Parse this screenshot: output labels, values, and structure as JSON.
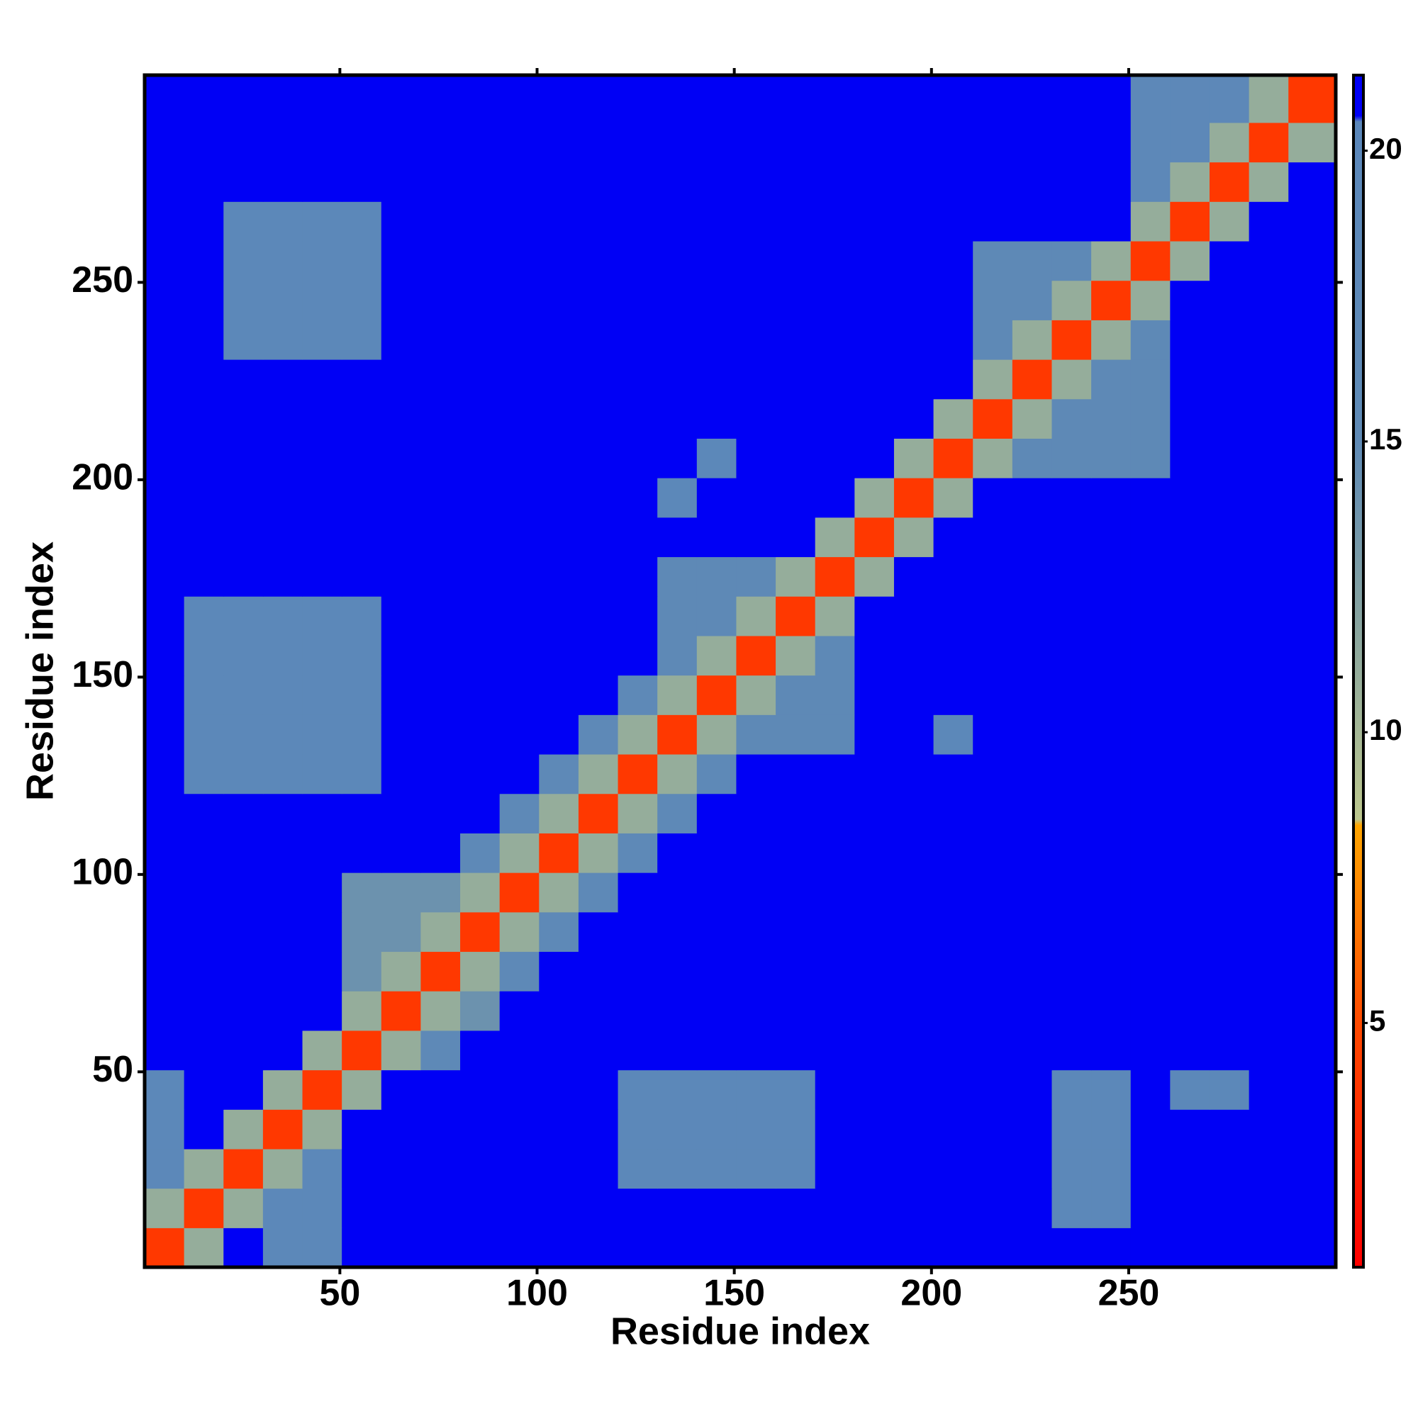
{
  "chart_data": {
    "type": "heatmap",
    "xlabel": "Residue index",
    "ylabel": "Residue index",
    "xlim": [
      0.5,
      302.5
    ],
    "ylim": [
      0.5,
      302.5
    ],
    "xticks": [
      50,
      100,
      150,
      200,
      250
    ],
    "yticks": [
      50,
      100,
      150,
      200,
      250
    ],
    "xbins": [
      0.5,
      10.5,
      20.5,
      30.5,
      40.5,
      50.5,
      60.5,
      70.5,
      80.5,
      90.5,
      100.5,
      110.5,
      120.5,
      130.5,
      140.5,
      150.5,
      160.5,
      170.5,
      180.5,
      190.5,
      200.5,
      210.5,
      220.5,
      230.5,
      240.5,
      250.5,
      260.5,
      270.5,
      280.5,
      290.5,
      302.5
    ],
    "ybins": [
      0.5,
      10.5,
      20.5,
      30.5,
      40.5,
      50.5,
      60.5,
      70.5,
      80.5,
      90.5,
      100.5,
      110.5,
      120.5,
      130.5,
      140.5,
      150.5,
      160.5,
      170.5,
      180.5,
      190.5,
      200.5,
      210.5,
      220.5,
      230.5,
      240.5,
      250.5,
      260.5,
      270.5,
      280.5,
      290.5,
      302.5
    ],
    "zlim": [
      0.8,
      21.3
    ],
    "zticks": [
      5,
      10,
      15,
      20
    ],
    "colorscale": [
      [
        0.8,
        "#ff0000"
      ],
      [
        5,
        "#ff4a00"
      ],
      [
        8.4,
        "#ffa500"
      ],
      [
        8.5,
        "#bcc78e"
      ],
      [
        12,
        "#86a3a0"
      ],
      [
        15,
        "#5f8ab5"
      ],
      [
        20.5,
        "#5b87ba"
      ],
      [
        20.6,
        "#0000f5"
      ],
      [
        21.3,
        "#0000f5"
      ]
    ],
    "z": [
      [
        4,
        11,
        21,
        19,
        19,
        21,
        21,
        21,
        21,
        21,
        21,
        21,
        21,
        21,
        21,
        21,
        21,
        21,
        21,
        21,
        21,
        21,
        21,
        21,
        21,
        21,
        21,
        21,
        21,
        21
      ],
      [
        11,
        4,
        11,
        19,
        19,
        21,
        21,
        21,
        21,
        21,
        21,
        21,
        21,
        21,
        21,
        21,
        21,
        21,
        21,
        21,
        21,
        21,
        21,
        19,
        19,
        21,
        21,
        21,
        21,
        21
      ],
      [
        19,
        11,
        4,
        11,
        19,
        21,
        21,
        21,
        21,
        21,
        21,
        21,
        19,
        19,
        19,
        19,
        19,
        21,
        21,
        21,
        21,
        21,
        21,
        19,
        19,
        21,
        21,
        21,
        21,
        21
      ],
      [
        19,
        21,
        11,
        4,
        11,
        21,
        21,
        21,
        21,
        21,
        21,
        21,
        19,
        19,
        19,
        19,
        19,
        21,
        21,
        21,
        21,
        21,
        21,
        19,
        19,
        21,
        21,
        21,
        21,
        21
      ],
      [
        19,
        21,
        21,
        11,
        4,
        11,
        21,
        21,
        21,
        21,
        21,
        21,
        19,
        19,
        19,
        19,
        19,
        21,
        21,
        21,
        21,
        21,
        21,
        19,
        19,
        21,
        19,
        19,
        21,
        21
      ],
      [
        21,
        21,
        21,
        21,
        11,
        4,
        11,
        17,
        21,
        21,
        21,
        21,
        21,
        21,
        21,
        21,
        21,
        21,
        21,
        21,
        21,
        21,
        21,
        21,
        21,
        21,
        21,
        21,
        21,
        21
      ],
      [
        21,
        21,
        21,
        21,
        21,
        11,
        4,
        11,
        14,
        21,
        21,
        21,
        21,
        21,
        21,
        21,
        21,
        21,
        21,
        21,
        21,
        21,
        21,
        21,
        21,
        21,
        21,
        21,
        21,
        21
      ],
      [
        21,
        21,
        21,
        21,
        21,
        14,
        11,
        4,
        11,
        17,
        21,
        21,
        21,
        21,
        21,
        21,
        21,
        21,
        21,
        21,
        21,
        21,
        21,
        21,
        21,
        21,
        21,
        21,
        21,
        21
      ],
      [
        21,
        21,
        21,
        21,
        21,
        14,
        14,
        11,
        4,
        11,
        17,
        21,
        21,
        21,
        21,
        21,
        21,
        21,
        21,
        21,
        21,
        21,
        21,
        21,
        21,
        21,
        21,
        21,
        21,
        21
      ],
      [
        21,
        21,
        21,
        21,
        21,
        14,
        14,
        14,
        11,
        4,
        11,
        17,
        21,
        21,
        21,
        21,
        21,
        21,
        21,
        21,
        21,
        21,
        21,
        21,
        21,
        21,
        21,
        21,
        21,
        21
      ],
      [
        21,
        21,
        21,
        21,
        21,
        21,
        21,
        21,
        17,
        11,
        4,
        11,
        17,
        21,
        21,
        21,
        21,
        21,
        21,
        21,
        21,
        21,
        21,
        21,
        21,
        21,
        21,
        21,
        21,
        21
      ],
      [
        21,
        21,
        21,
        21,
        21,
        21,
        21,
        21,
        21,
        17,
        11,
        4,
        11,
        17,
        21,
        21,
        21,
        21,
        21,
        21,
        21,
        21,
        21,
        21,
        21,
        21,
        21,
        21,
        21,
        21
      ],
      [
        21,
        19,
        19,
        19,
        19,
        19,
        21,
        21,
        21,
        21,
        17,
        11,
        4,
        11,
        17,
        21,
        21,
        21,
        21,
        21,
        21,
        21,
        21,
        21,
        21,
        21,
        21,
        21,
        21,
        21
      ],
      [
        21,
        19,
        19,
        19,
        19,
        19,
        21,
        21,
        21,
        21,
        21,
        17,
        11,
        4,
        11,
        16,
        16,
        16,
        21,
        21,
        19,
        21,
        21,
        21,
        21,
        21,
        21,
        21,
        21,
        21
      ],
      [
        21,
        19,
        19,
        19,
        19,
        19,
        21,
        21,
        21,
        21,
        21,
        21,
        17,
        11,
        4,
        11,
        16,
        16,
        21,
        21,
        21,
        21,
        21,
        21,
        21,
        21,
        21,
        21,
        21,
        21
      ],
      [
        21,
        19,
        19,
        19,
        19,
        19,
        21,
        21,
        21,
        21,
        21,
        21,
        21,
        16,
        11,
        4,
        11,
        16,
        21,
        21,
        21,
        21,
        21,
        21,
        21,
        21,
        21,
        21,
        21,
        21
      ],
      [
        21,
        19,
        19,
        19,
        19,
        19,
        21,
        21,
        21,
        21,
        21,
        21,
        21,
        16,
        16,
        11,
        4,
        11,
        21,
        21,
        21,
        21,
        21,
        21,
        21,
        21,
        21,
        21,
        21,
        21
      ],
      [
        21,
        21,
        21,
        21,
        21,
        21,
        21,
        21,
        21,
        21,
        21,
        21,
        21,
        16,
        16,
        16,
        11,
        4,
        11,
        21,
        21,
        21,
        21,
        21,
        21,
        21,
        21,
        21,
        21,
        21
      ],
      [
        21,
        21,
        21,
        21,
        21,
        21,
        21,
        21,
        21,
        21,
        21,
        21,
        21,
        21,
        21,
        21,
        21,
        11,
        4,
        11,
        21,
        21,
        21,
        21,
        21,
        21,
        21,
        21,
        21,
        21
      ],
      [
        21,
        21,
        21,
        21,
        21,
        21,
        21,
        21,
        21,
        21,
        21,
        21,
        21,
        19,
        21,
        21,
        21,
        21,
        11,
        4,
        11,
        21,
        21,
        21,
        21,
        21,
        21,
        21,
        21,
        21
      ],
      [
        21,
        21,
        21,
        21,
        21,
        21,
        21,
        21,
        21,
        21,
        21,
        21,
        21,
        21,
        19,
        21,
        21,
        21,
        21,
        11,
        4,
        11,
        16,
        16,
        16,
        16,
        21,
        21,
        21,
        21
      ],
      [
        21,
        21,
        21,
        21,
        21,
        21,
        21,
        21,
        21,
        21,
        21,
        21,
        21,
        21,
        21,
        21,
        21,
        21,
        21,
        21,
        11,
        4,
        11,
        16,
        16,
        16,
        21,
        21,
        21,
        21
      ],
      [
        21,
        21,
        21,
        21,
        21,
        21,
        21,
        21,
        21,
        21,
        21,
        21,
        21,
        21,
        21,
        21,
        21,
        21,
        21,
        21,
        21,
        11,
        4,
        11,
        16,
        16,
        21,
        21,
        21,
        21
      ],
      [
        21,
        21,
        19,
        19,
        19,
        19,
        21,
        21,
        21,
        21,
        21,
        21,
        21,
        21,
        21,
        21,
        21,
        21,
        21,
        21,
        21,
        16,
        11,
        4,
        11,
        16,
        21,
        21,
        21,
        21
      ],
      [
        21,
        21,
        19,
        19,
        19,
        19,
        21,
        21,
        21,
        21,
        21,
        21,
        21,
        21,
        21,
        21,
        21,
        21,
        21,
        21,
        21,
        16,
        16,
        11,
        4,
        11,
        21,
        21,
        21,
        21
      ],
      [
        21,
        21,
        19,
        19,
        19,
        19,
        21,
        21,
        21,
        21,
        21,
        21,
        21,
        21,
        21,
        21,
        21,
        21,
        21,
        21,
        21,
        16,
        16,
        16,
        11,
        4,
        11,
        21,
        21,
        21
      ],
      [
        21,
        21,
        19,
        19,
        19,
        19,
        21,
        21,
        21,
        21,
        21,
        21,
        21,
        21,
        21,
        21,
        21,
        21,
        21,
        21,
        21,
        21,
        21,
        21,
        21,
        11,
        4,
        11,
        21,
        21
      ],
      [
        21,
        21,
        21,
        21,
        21,
        21,
        21,
        21,
        21,
        21,
        21,
        21,
        21,
        21,
        21,
        21,
        21,
        21,
        21,
        21,
        21,
        21,
        21,
        21,
        21,
        18,
        11,
        4,
        11,
        21
      ],
      [
        21,
        21,
        21,
        21,
        21,
        21,
        21,
        21,
        21,
        21,
        21,
        21,
        21,
        21,
        21,
        21,
        21,
        21,
        21,
        21,
        21,
        21,
        21,
        21,
        21,
        18,
        18,
        11,
        4,
        11
      ],
      [
        21,
        21,
        21,
        21,
        21,
        21,
        21,
        21,
        21,
        21,
        21,
        21,
        21,
        21,
        21,
        21,
        21,
        21,
        21,
        21,
        21,
        21,
        21,
        21,
        21,
        18,
        18,
        18,
        11,
        4
      ]
    ]
  }
}
